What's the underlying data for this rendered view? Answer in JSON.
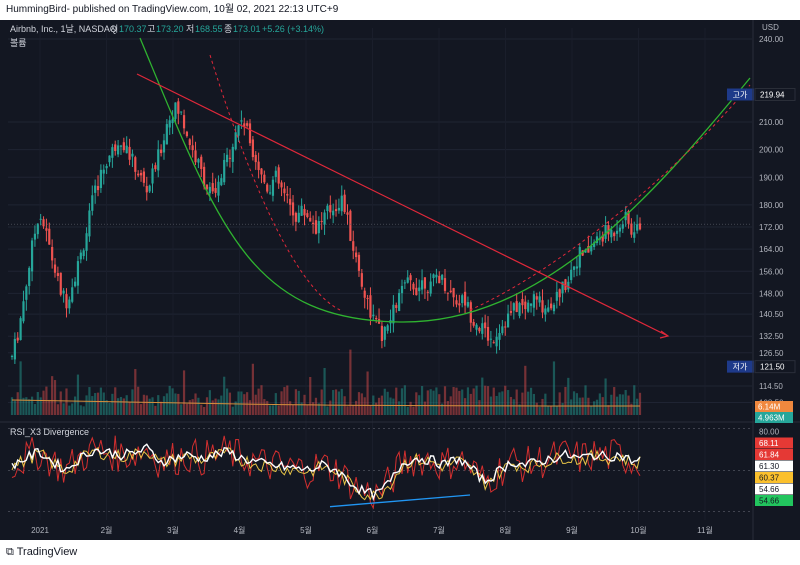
{
  "header": {
    "published": "HummingBird- published on TradingView.com, 10월 02, 2021 22:13 UTC+9"
  },
  "legend": {
    "symbol": "Airbnb, Inc., 1날, NASDAQ",
    "open_label": "시",
    "open": "170.37",
    "high_label": "고",
    "high": "173.20",
    "low_label": "저",
    "low": "168.55",
    "close_label": "종",
    "close": "173.01",
    "change": "+5.26 (+3.14%)",
    "volume_label": "볼륨",
    "rsi_label": "RSI_X3 Divergence"
  },
  "footer": {
    "logo": "TradingView"
  },
  "colors": {
    "up": "#26a69a",
    "down": "#ef5350",
    "background": "#131722",
    "green_curve": "#2fb330",
    "red_line": "#e0283a",
    "price_tag": "#1e53e5"
  },
  "chart_data": {
    "type": "candlestick",
    "currency": "USD",
    "price_axis_ticks": [
      "240.00",
      "210.00",
      "200.00",
      "190.00",
      "180.00",
      "172.00",
      "164.00",
      "156.00",
      "148.00",
      "140.50",
      "132.50",
      "126.50",
      "114.50",
      "108.50"
    ],
    "price_range": [
      104,
      244
    ],
    "x_ticks": [
      "2021",
      "2월",
      "3월",
      "4월",
      "5월",
      "6월",
      "7월",
      "8월",
      "9월",
      "10월",
      "11월"
    ],
    "high_tag": {
      "label": "고가",
      "value": "219.94"
    },
    "low_tag": {
      "label": "저가",
      "value": "121.50"
    },
    "last_price": 173.01,
    "volume_tags": [
      "6.14M",
      "4.963M"
    ],
    "rsi_ticks": [
      "80.00",
      "68.11",
      "61.84",
      "61.30",
      "60.37",
      "54.66",
      "54.66"
    ],
    "rsi_range": [
      25,
      82
    ],
    "ohlc_anchors": [
      [
        0,
        125
      ],
      [
        1,
        135
      ],
      [
        2,
        150
      ],
      [
        3,
        165
      ],
      [
        4,
        178
      ],
      [
        5,
        170
      ],
      [
        6,
        160
      ],
      [
        7,
        150
      ],
      [
        8,
        145
      ],
      [
        9,
        152
      ],
      [
        10,
        160
      ],
      [
        11,
        170
      ],
      [
        12,
        182
      ],
      [
        13,
        190
      ],
      [
        14,
        196
      ],
      [
        15,
        200
      ],
      [
        16,
        205
      ],
      [
        17,
        200
      ],
      [
        18,
        195
      ],
      [
        19,
        190
      ],
      [
        20,
        185
      ],
      [
        21,
        192
      ],
      [
        22,
        200
      ],
      [
        23,
        210
      ],
      [
        24,
        215
      ],
      [
        25,
        213
      ],
      [
        26,
        205
      ],
      [
        27,
        198
      ],
      [
        28,
        192
      ],
      [
        29,
        186
      ],
      [
        30,
        182
      ],
      [
        31,
        190
      ],
      [
        32,
        198
      ],
      [
        33,
        205
      ],
      [
        34,
        212
      ],
      [
        35,
        205
      ],
      [
        36,
        198
      ],
      [
        37,
        190
      ],
      [
        38,
        186
      ],
      [
        39,
        190
      ],
      [
        40,
        185
      ],
      [
        41,
        180
      ],
      [
        42,
        176
      ],
      [
        43,
        178
      ],
      [
        44,
        176
      ],
      [
        45,
        172
      ],
      [
        46,
        175
      ],
      [
        47,
        178
      ],
      [
        48,
        180
      ],
      [
        49,
        182
      ],
      [
        50,
        170
      ],
      [
        51,
        160
      ],
      [
        52,
        150
      ],
      [
        53,
        142
      ],
      [
        54,
        136
      ],
      [
        55,
        132
      ],
      [
        56,
        138
      ],
      [
        57,
        145
      ],
      [
        58,
        150
      ],
      [
        59,
        152
      ],
      [
        60,
        150
      ],
      [
        61,
        153
      ],
      [
        62,
        150
      ],
      [
        63,
        155
      ],
      [
        64,
        152
      ],
      [
        65,
        148
      ],
      [
        66,
        145
      ],
      [
        67,
        146
      ],
      [
        68,
        140
      ],
      [
        69,
        137
      ],
      [
        70,
        134
      ],
      [
        71,
        131
      ],
      [
        72,
        135
      ],
      [
        73,
        138
      ],
      [
        74,
        141
      ],
      [
        75,
        144
      ],
      [
        76,
        142
      ],
      [
        77,
        146
      ],
      [
        78,
        145
      ],
      [
        79,
        143
      ],
      [
        80,
        145
      ],
      [
        81,
        148
      ],
      [
        82,
        152
      ],
      [
        83,
        158
      ],
      [
        84,
        162
      ],
      [
        85,
        162
      ],
      [
        86,
        166
      ],
      [
        87,
        168
      ],
      [
        88,
        170
      ],
      [
        89,
        170
      ],
      [
        90,
        174
      ],
      [
        91,
        175
      ],
      [
        92,
        169
      ],
      [
        93,
        173
      ]
    ],
    "rsi_anchors": [
      [
        0,
        58
      ],
      [
        2,
        62
      ],
      [
        4,
        66
      ],
      [
        6,
        60
      ],
      [
        8,
        55
      ],
      [
        10,
        62
      ],
      [
        12,
        67
      ],
      [
        14,
        66
      ],
      [
        16,
        64
      ],
      [
        18,
        65
      ],
      [
        20,
        68
      ],
      [
        22,
        60
      ],
      [
        24,
        62
      ],
      [
        26,
        64
      ],
      [
        28,
        62
      ],
      [
        30,
        64
      ],
      [
        32,
        66
      ],
      [
        34,
        62
      ],
      [
        36,
        60
      ],
      [
        38,
        58
      ],
      [
        40,
        57
      ],
      [
        42,
        56
      ],
      [
        44,
        55
      ],
      [
        46,
        58
      ],
      [
        48,
        55
      ],
      [
        50,
        48
      ],
      [
        52,
        42
      ],
      [
        54,
        40
      ],
      [
        56,
        48
      ],
      [
        58,
        60
      ],
      [
        60,
        62
      ],
      [
        62,
        61
      ],
      [
        64,
        58
      ],
      [
        66,
        62
      ],
      [
        68,
        56
      ],
      [
        70,
        48
      ],
      [
        72,
        54
      ],
      [
        74,
        60
      ],
      [
        76,
        58
      ],
      [
        78,
        60
      ],
      [
        80,
        62
      ],
      [
        82,
        64
      ],
      [
        84,
        62
      ],
      [
        86,
        64
      ],
      [
        88,
        63
      ],
      [
        90,
        64
      ],
      [
        92,
        60
      ],
      [
        93,
        61
      ]
    ],
    "annotations": [
      "rounding bottom curve",
      "descending trendline",
      "rsi divergence line"
    ]
  }
}
